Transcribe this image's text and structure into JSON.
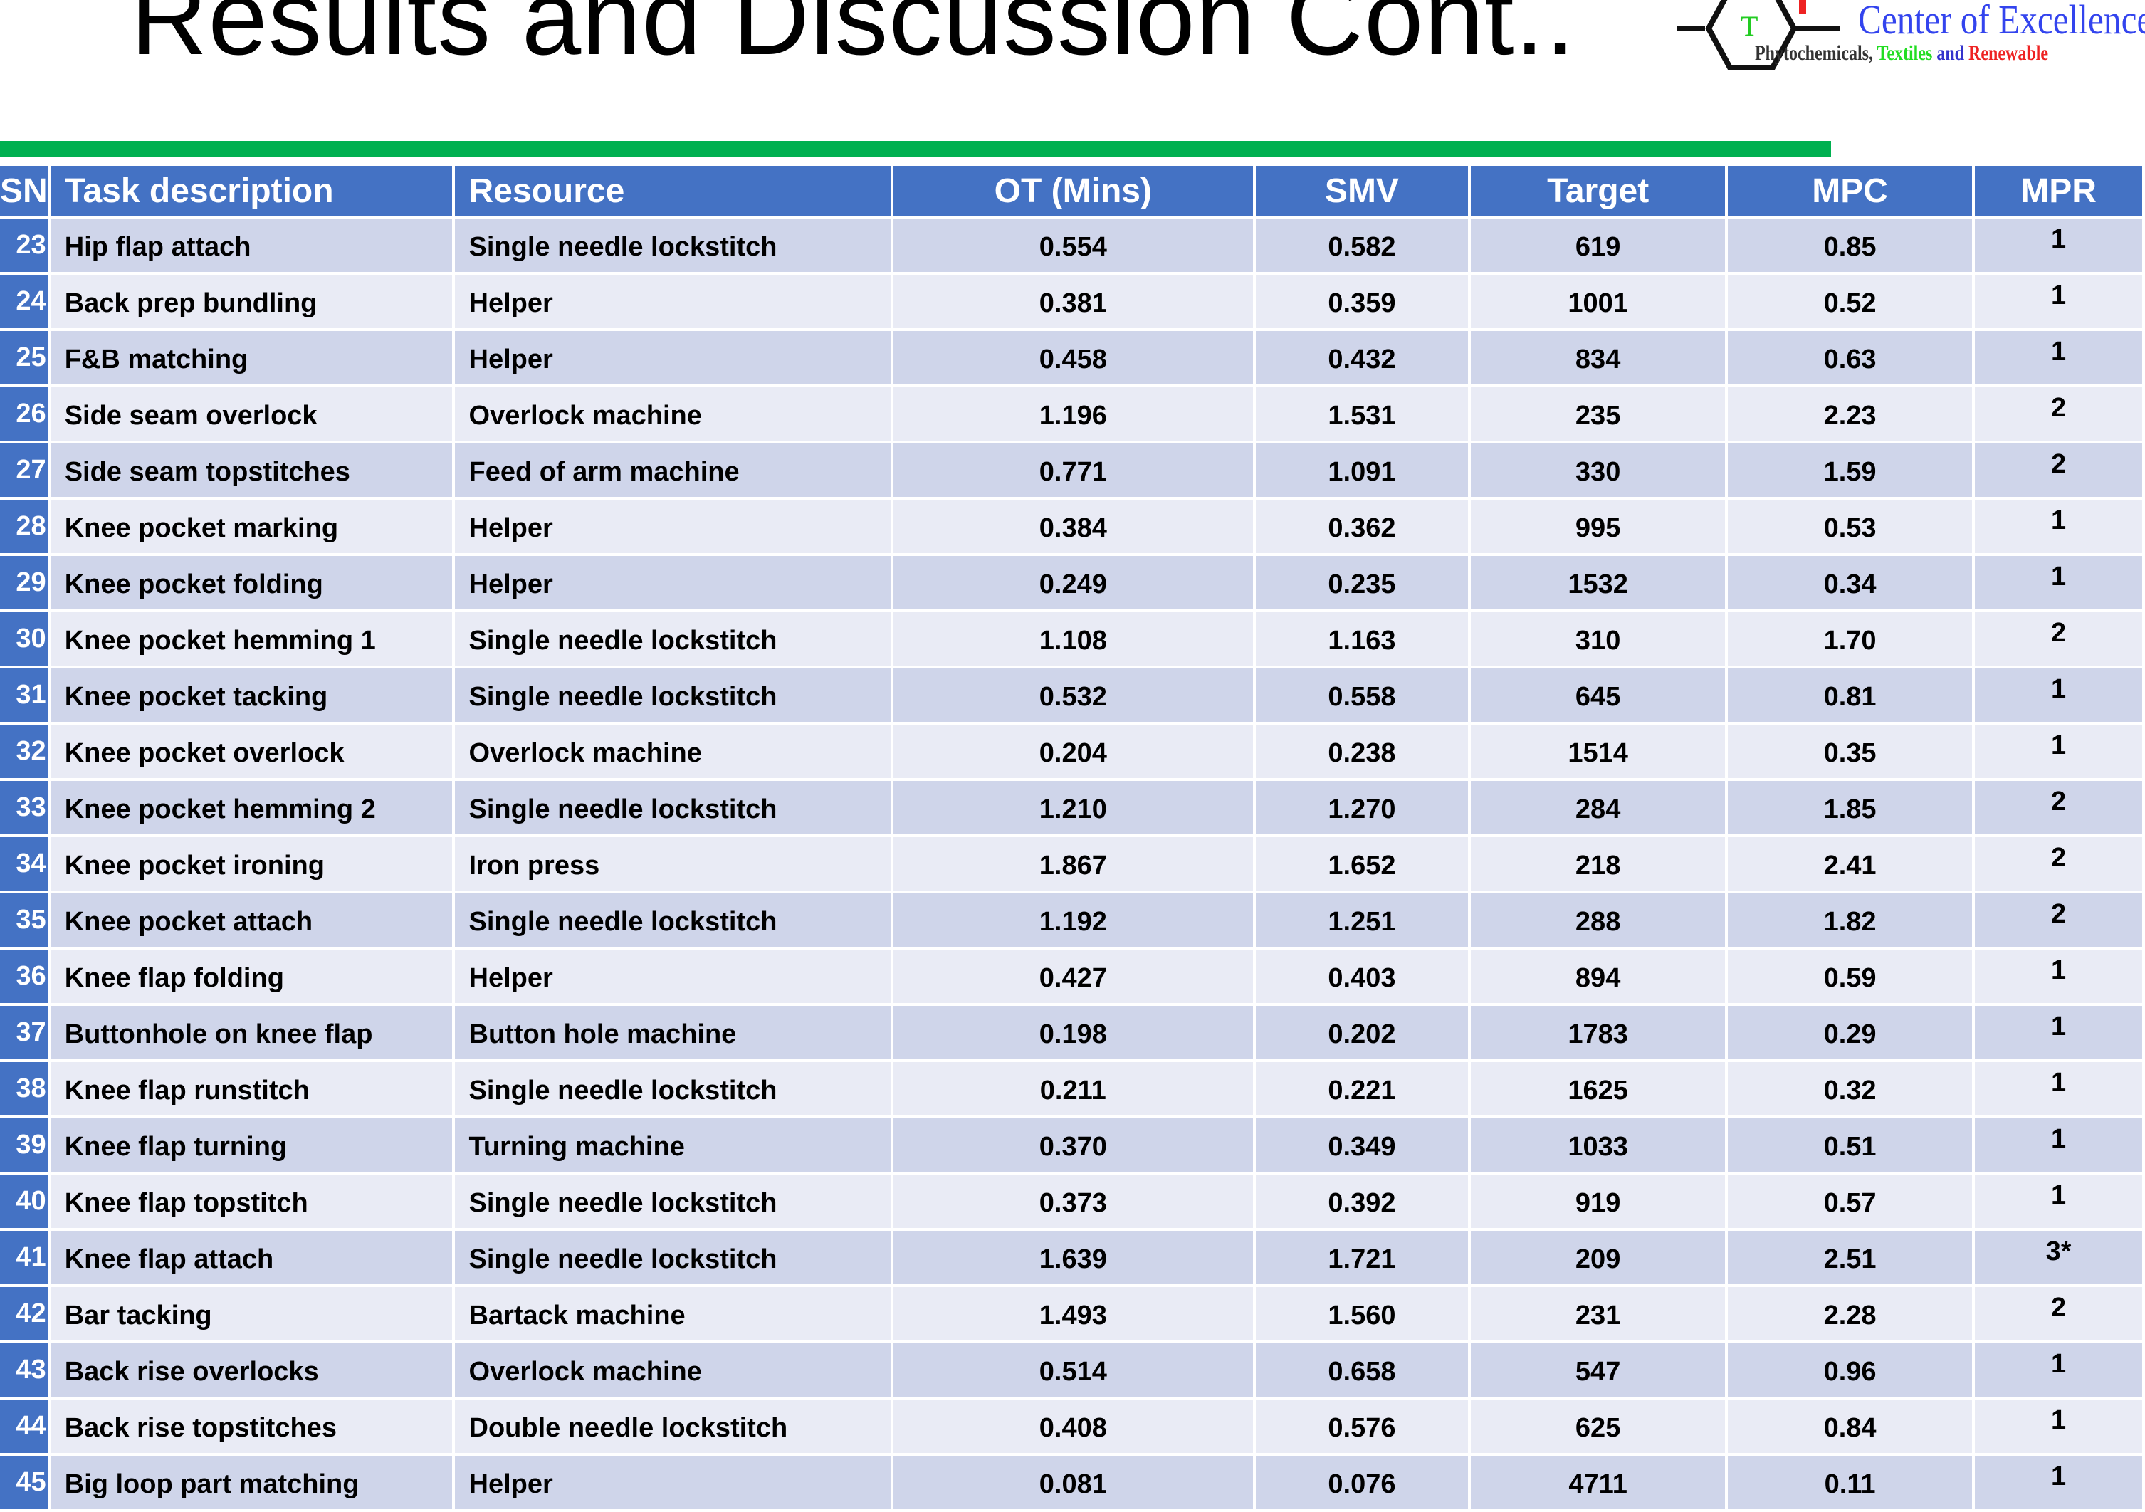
{
  "slide": {
    "title": "Results and Discussion Cont..",
    "logo": {
      "main": "Center of Excellence",
      "sub_1": "Phytochemicals,",
      "sub_2": "Textiles",
      "sub_3": "and",
      "sub_4": "Renewable"
    },
    "colors": {
      "header": "#4472C4",
      "row_odd": "#CFD5EA",
      "row_even": "#E9EBF5",
      "accent_bar": "#00B050"
    }
  },
  "table": {
    "headers": [
      "SN",
      "Task description",
      "Resource",
      "OT (Mins)",
      "SMV",
      "Target",
      "MPC",
      "MPR"
    ],
    "rows": [
      [
        "23",
        "Hip flap attach",
        "Single needle lockstitch",
        "0.554",
        "0.582",
        "619",
        "0.85",
        "1"
      ],
      [
        "24",
        "Back prep bundling",
        "Helper",
        "0.381",
        "0.359",
        "1001",
        "0.52",
        "1"
      ],
      [
        "25",
        "F&B matching",
        "Helper",
        "0.458",
        "0.432",
        "834",
        "0.63",
        "1"
      ],
      [
        "26",
        "Side seam overlock",
        "Overlock machine",
        "1.196",
        "1.531",
        "235",
        "2.23",
        "2"
      ],
      [
        "27",
        "Side seam topstitches",
        "Feed of arm machine",
        "0.771",
        "1.091",
        "330",
        "1.59",
        "2"
      ],
      [
        "28",
        "Knee pocket marking",
        "Helper",
        "0.384",
        "0.362",
        "995",
        "0.53",
        "1"
      ],
      [
        "29",
        "Knee pocket folding",
        "Helper",
        "0.249",
        "0.235",
        "1532",
        "0.34",
        "1"
      ],
      [
        "30",
        "Knee pocket hemming 1",
        "Single needle lockstitch",
        "1.108",
        "1.163",
        "310",
        "1.70",
        "2"
      ],
      [
        "31",
        "Knee pocket tacking",
        "Single needle lockstitch",
        "0.532",
        "0.558",
        "645",
        "0.81",
        "1"
      ],
      [
        "32",
        "Knee pocket overlock",
        "Overlock machine",
        "0.204",
        "0.238",
        "1514",
        "0.35",
        "1"
      ],
      [
        "33",
        "Knee pocket hemming 2",
        "Single needle lockstitch",
        "1.210",
        "1.270",
        "284",
        "1.85",
        "2"
      ],
      [
        "34",
        "Knee pocket ironing",
        "Iron press",
        "1.867",
        "1.652",
        "218",
        "2.41",
        "2"
      ],
      [
        "35",
        "Knee pocket attach",
        "Single needle lockstitch",
        "1.192",
        "1.251",
        "288",
        "1.82",
        "2"
      ],
      [
        "36",
        "Knee flap folding",
        "Helper",
        "0.427",
        "0.403",
        "894",
        "0.59",
        "1"
      ],
      [
        "37",
        "Buttonhole on knee flap",
        "Button hole machine",
        "0.198",
        "0.202",
        "1783",
        "0.29",
        "1"
      ],
      [
        "38",
        "Knee flap runstitch",
        "Single needle lockstitch",
        "0.211",
        "0.221",
        "1625",
        "0.32",
        "1"
      ],
      [
        "39",
        "Knee flap turning",
        "Turning machine",
        "0.370",
        "0.349",
        "1033",
        "0.51",
        "1"
      ],
      [
        "40",
        "Knee flap topstitch",
        "Single needle lockstitch",
        "0.373",
        "0.392",
        "919",
        "0.57",
        "1"
      ],
      [
        "41",
        "Knee flap attach",
        "Single needle lockstitch",
        "1.639",
        "1.721",
        "209",
        "2.51",
        "3*"
      ],
      [
        "42",
        "Bar tacking",
        "Bartack machine",
        "1.493",
        "1.560",
        "231",
        "2.28",
        "2"
      ],
      [
        "43",
        "Back rise overlocks",
        "Overlock machine",
        "0.514",
        "0.658",
        "547",
        "0.96",
        "1"
      ],
      [
        "44",
        "Back rise topstitches",
        "Double needle lockstitch",
        "0.408",
        "0.576",
        "625",
        "0.84",
        "1"
      ],
      [
        "45",
        "Big loop part matching",
        "Helper",
        "0.081",
        "0.076",
        "4711",
        "0.11",
        "1"
      ]
    ]
  }
}
